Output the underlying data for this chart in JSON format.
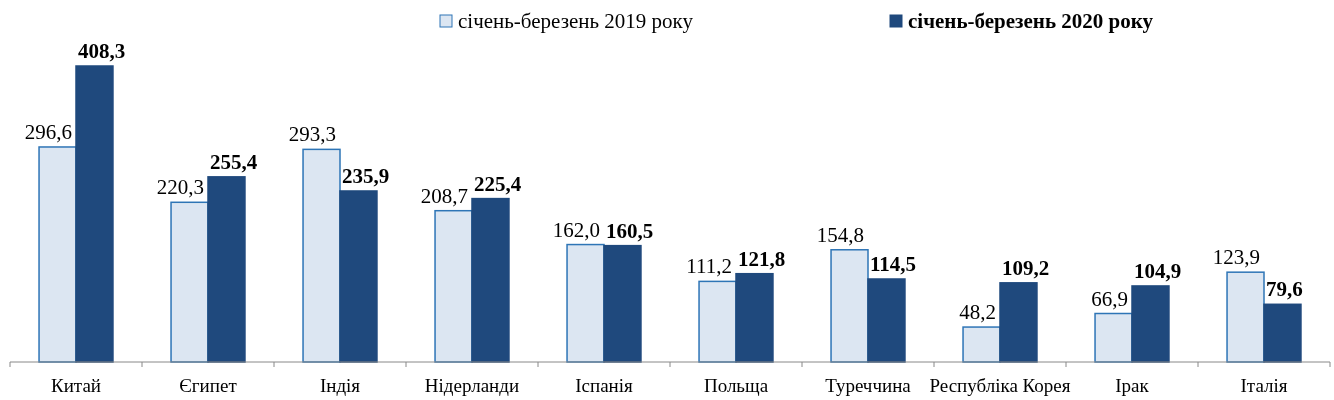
{
  "chart_data": {
    "type": "bar",
    "categories": [
      "Китай",
      "Єгипет",
      "Індія",
      "Нідерланди",
      "Іспанія",
      "Польща",
      "Туреччина",
      "Республіка Корея",
      "Ірак",
      "Італія"
    ],
    "series": [
      {
        "name": "січень-березень 2019 року",
        "color": "#dce6f2",
        "values": [
          296.6,
          220.3,
          293.3,
          208.7,
          162.0,
          111.2,
          154.8,
          48.2,
          66.9,
          123.9
        ],
        "value_labels": [
          "296,6",
          "220,3",
          "293,3",
          "208,7",
          "162,0",
          "111,2",
          "154,8",
          "48,2",
          "66,9",
          "123,9"
        ]
      },
      {
        "name": "січень-березень 2020 року",
        "color": "#1f497d",
        "values": [
          408.3,
          255.4,
          235.9,
          225.4,
          160.5,
          121.8,
          114.5,
          109.2,
          104.9,
          79.6
        ],
        "value_labels": [
          "408,3",
          "255,4",
          "235,9",
          "225,4",
          "160,5",
          "121,8",
          "114,5",
          "109,2",
          "104,9",
          "79,6"
        ]
      }
    ],
    "legend": "top"
  }
}
